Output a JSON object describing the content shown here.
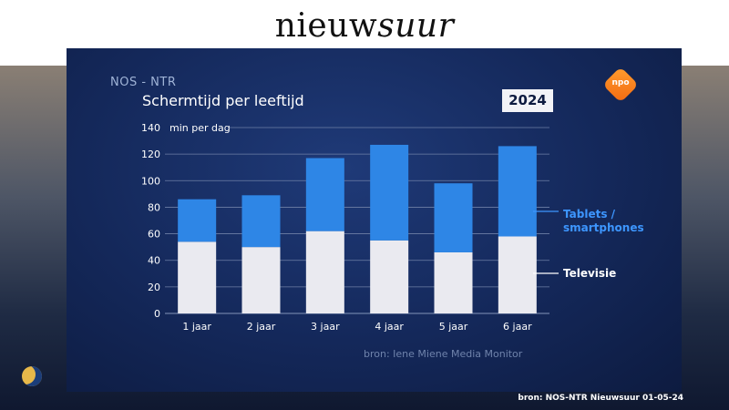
{
  "brand": {
    "title_plain": "nieuw",
    "title_italic": "suur"
  },
  "panel": {
    "network": "NOS - NTR",
    "year_badge": "2024",
    "logo_text": "npo",
    "source_inner": "bron: Iene Miene Media Monitor"
  },
  "footer": {
    "credit": "bron: NOS-NTR Nieuwsuur 01-05-24"
  },
  "colors": {
    "television": "#eaeaf0",
    "tablets": "#2e86e6",
    "grid": "#6e7fa6",
    "legend_tablets": "#3d96ff"
  },
  "chart_data": {
    "type": "bar",
    "stacked": true,
    "title": "Schermtijd per leeftijd",
    "ylabel": "min per dag",
    "xlabel": "",
    "ylim": [
      0,
      140
    ],
    "yticks": [
      0,
      20,
      40,
      60,
      80,
      100,
      120,
      140
    ],
    "grid": true,
    "legend_position": "right",
    "categories": [
      "1 jaar",
      "2 jaar",
      "3 jaar",
      "4 jaar",
      "5 jaar",
      "6 jaar"
    ],
    "series": [
      {
        "name": "Televisie",
        "values": [
          54,
          50,
          62,
          55,
          46,
          58
        ]
      },
      {
        "name": "Tablets / smartphones",
        "values": [
          32,
          39,
          55,
          72,
          52,
          68
        ]
      }
    ]
  }
}
